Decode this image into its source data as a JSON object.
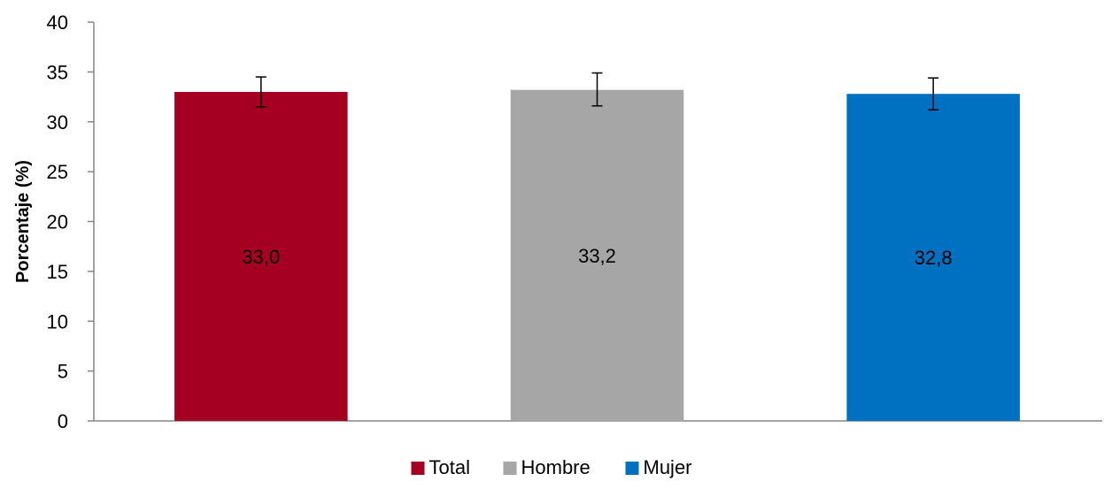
{
  "chart_data": {
    "type": "bar",
    "title": "",
    "xlabel": "",
    "ylabel": "Porcentaje (%)",
    "ylim": [
      0,
      40
    ],
    "yticks": [
      "0",
      "5",
      "10",
      "15",
      "20",
      "25",
      "30",
      "35",
      "40"
    ],
    "grid": false,
    "legend_position": "bottom",
    "categories": [
      "Total",
      "Hombre",
      "Mujer"
    ],
    "values": [
      33.0,
      33.2,
      32.8
    ],
    "value_labels": [
      "33,0",
      "33,2",
      "32,8"
    ],
    "error_bars": [
      {
        "low": 31.5,
        "high": 34.5
      },
      {
        "low": 31.6,
        "high": 34.9
      },
      {
        "low": 31.2,
        "high": 34.4
      }
    ],
    "colors": [
      "#A50021",
      "#A6A6A6",
      "#0070C0"
    ],
    "legend": [
      "Total",
      "Hombre",
      "Mujer"
    ]
  }
}
